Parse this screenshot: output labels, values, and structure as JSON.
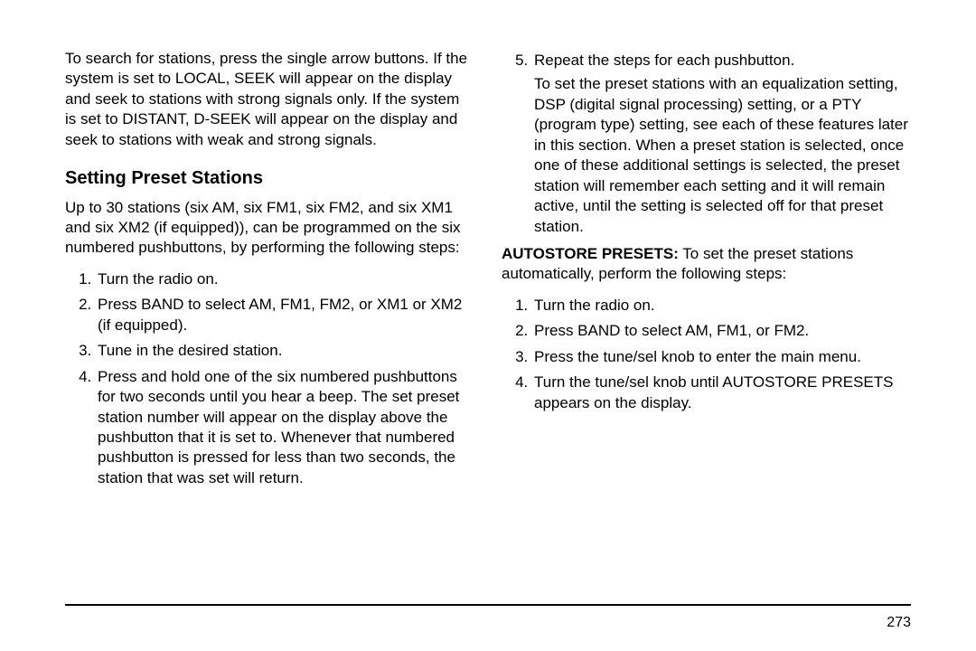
{
  "page_number": "273",
  "left": {
    "intro": "To search for stations, press the single arrow buttons. If the system is set to LOCAL, SEEK will appear on the display and seek to stations with strong signals only. If the system is set to DISTANT, D-SEEK will appear on the display and seek to stations with weak and strong signals.",
    "heading": "Setting Preset Stations",
    "lead": "Up to 30 stations (six AM, six FM1, six FM2, and six XM1 and six XM2 (if equipped)), can be programmed on the six numbered pushbuttons, by performing the following steps:",
    "steps": [
      "Turn the radio on.",
      "Press BAND to select AM, FM1, FM2, or XM1 or XM2 (if equipped).",
      "Tune in the desired station.",
      "Press and hold one of the six numbered pushbuttons for two seconds until you hear a beep. The set preset station number will appear on the display above the pushbutton that it is set to. Whenever that numbered pushbutton is pressed for less than two seconds, the station that was set will return."
    ]
  },
  "right": {
    "step5": "Repeat the steps for each pushbutton.",
    "step5_sub": "To set the preset stations with an equalization setting, DSP (digital signal processing) setting, or a PTY (program type) setting, see each of these features later in this section. When a preset station is selected, once one of these additional settings is selected, the preset station will remember each setting and it will remain active, until the setting is selected off for that preset station.",
    "auto_label": "AUTOSTORE PRESETS:",
    "auto_text": "  To set the preset stations automatically, perform the following steps:",
    "auto_steps": [
      "Turn the radio on.",
      "Press BAND to select AM, FM1, or FM2.",
      "Press the tune/sel knob to enter the main menu.",
      "Turn the tune/sel knob until AUTOSTORE PRESETS appears on the display."
    ]
  }
}
